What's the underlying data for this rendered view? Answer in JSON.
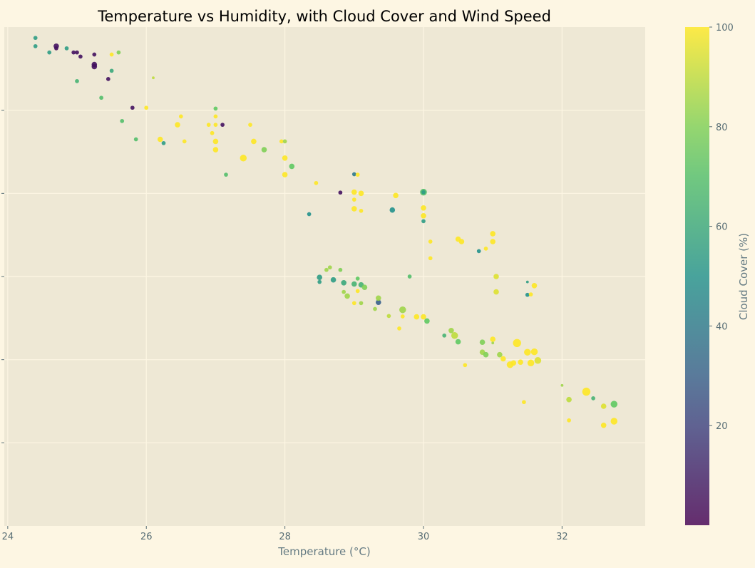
{
  "chart_data": {
    "type": "scatter",
    "title": "Temperature vs Humidity, with Cloud Cover and Wind Speed",
    "xlabel": "Temperature (°C)",
    "ylabel": "",
    "xlim": [
      23.95,
      33.2
    ],
    "ylim": [
      -0.2,
      1.0
    ],
    "x_ticks": [
      24,
      26,
      28,
      30,
      32
    ],
    "x_tick_labels": [
      "24",
      "26",
      "28",
      "30",
      "32"
    ],
    "y_ticks_unlabeled": [
      0.0,
      0.2,
      0.4,
      0.6,
      0.8
    ],
    "grid": true,
    "colorbar": {
      "label": "Cloud Cover (%)",
      "range": [
        0,
        100
      ],
      "ticks": [
        20,
        40,
        60,
        80,
        100
      ],
      "tick_labels": [
        "20",
        "40",
        "60",
        "80",
        "100"
      ],
      "colormap": "viridis"
    },
    "size_encodes": "Wind Speed",
    "points_format": "[temperature, y, cloud_cover, wind_speed]",
    "points": [
      [
        24.4,
        0.974,
        55,
        1.5
      ],
      [
        24.4,
        0.954,
        55,
        1.5
      ],
      [
        24.6,
        0.939,
        55,
        1.5
      ],
      [
        24.7,
        0.954,
        5,
        2
      ],
      [
        24.7,
        0.949,
        5,
        1.5
      ],
      [
        24.85,
        0.949,
        55,
        1.5
      ],
      [
        24.95,
        0.939,
        5,
        1.5
      ],
      [
        25.0,
        0.939,
        5,
        1.5
      ],
      [
        25.05,
        0.929,
        5,
        1.5
      ],
      [
        25.0,
        0.87,
        65,
        1.5
      ],
      [
        25.25,
        0.934,
        5,
        1.5
      ],
      [
        25.25,
        0.91,
        5,
        2
      ],
      [
        25.25,
        0.905,
        5,
        2
      ],
      [
        25.35,
        0.83,
        70,
        1.5
      ],
      [
        25.45,
        0.875,
        5,
        1.5
      ],
      [
        25.5,
        0.895,
        60,
        1.5
      ],
      [
        25.5,
        0.934,
        100,
        1.5
      ],
      [
        25.6,
        0.939,
        80,
        1.5
      ],
      [
        25.65,
        0.774,
        70,
        1.5
      ],
      [
        25.8,
        0.806,
        5,
        1.5
      ],
      [
        25.85,
        0.73,
        70,
        1.5
      ],
      [
        26.0,
        0.806,
        100,
        1.5
      ],
      [
        26.1,
        0.878,
        90,
        1
      ],
      [
        26.2,
        0.73,
        100,
        2
      ],
      [
        26.25,
        0.721,
        55,
        1.5
      ],
      [
        26.45,
        0.765,
        100,
        2
      ],
      [
        26.5,
        0.785,
        100,
        1.5
      ],
      [
        26.55,
        0.725,
        100,
        1.5
      ],
      [
        26.9,
        0.765,
        100,
        1.5
      ],
      [
        26.95,
        0.745,
        100,
        1.5
      ],
      [
        27.0,
        0.804,
        75,
        1.5
      ],
      [
        27.0,
        0.785,
        100,
        1.5
      ],
      [
        27.0,
        0.765,
        100,
        1.5
      ],
      [
        27.0,
        0.725,
        100,
        2
      ],
      [
        27.0,
        0.705,
        100,
        2
      ],
      [
        27.1,
        0.765,
        5,
        1.5
      ],
      [
        27.15,
        0.645,
        70,
        1.5
      ],
      [
        27.4,
        0.685,
        100,
        2.5
      ],
      [
        27.5,
        0.765,
        100,
        1.5
      ],
      [
        27.55,
        0.725,
        100,
        2
      ],
      [
        27.7,
        0.705,
        80,
        2
      ],
      [
        27.95,
        0.725,
        100,
        1.5
      ],
      [
        28.0,
        0.725,
        85,
        1.5
      ],
      [
        28.0,
        0.685,
        100,
        2
      ],
      [
        28.0,
        0.645,
        100,
        2
      ],
      [
        28.1,
        0.665,
        75,
        2
      ],
      [
        28.35,
        0.55,
        50,
        1.5
      ],
      [
        28.45,
        0.625,
        100,
        1.5
      ],
      [
        28.5,
        0.398,
        55,
        2
      ],
      [
        28.5,
        0.387,
        55,
        1.5
      ],
      [
        28.6,
        0.416,
        85,
        1.5
      ],
      [
        28.65,
        0.422,
        85,
        1.5
      ],
      [
        28.7,
        0.392,
        55,
        2
      ],
      [
        28.8,
        0.416,
        80,
        1.5
      ],
      [
        28.8,
        0.602,
        5,
        1.5
      ],
      [
        28.85,
        0.363,
        85,
        1.5
      ],
      [
        28.85,
        0.385,
        60,
        2
      ],
      [
        28.9,
        0.353,
        85,
        2
      ],
      [
        29.0,
        0.646,
        40,
        1.5
      ],
      [
        29.0,
        0.603,
        100,
        2
      ],
      [
        29.0,
        0.585,
        100,
        1.5
      ],
      [
        29.0,
        0.563,
        100,
        2
      ],
      [
        29.0,
        0.336,
        100,
        1.5
      ],
      [
        29.0,
        0.382,
        65,
        2
      ],
      [
        29.05,
        0.395,
        75,
        1.5
      ],
      [
        29.05,
        0.365,
        100,
        1.5
      ],
      [
        29.05,
        0.645,
        100,
        1.5
      ],
      [
        29.1,
        0.6,
        100,
        2
      ],
      [
        29.1,
        0.558,
        100,
        1.5
      ],
      [
        29.1,
        0.38,
        65,
        2
      ],
      [
        29.1,
        0.336,
        85,
        1.5
      ],
      [
        29.15,
        0.374,
        80,
        2
      ],
      [
        29.3,
        0.322,
        85,
        1.5
      ],
      [
        29.35,
        0.338,
        30,
        2
      ],
      [
        29.35,
        0.348,
        85,
        2
      ],
      [
        29.5,
        0.305,
        90,
        1.5
      ],
      [
        29.55,
        0.56,
        50,
        2
      ],
      [
        29.6,
        0.595,
        100,
        2
      ],
      [
        29.65,
        0.275,
        100,
        1.5
      ],
      [
        29.7,
        0.32,
        85,
        2.5
      ],
      [
        29.7,
        0.304,
        100,
        1.5
      ],
      [
        29.8,
        0.4,
        70,
        1.5
      ],
      [
        29.9,
        0.303,
        100,
        2
      ],
      [
        30.0,
        0.603,
        70,
        2.5
      ],
      [
        30.0,
        0.603,
        55,
        1.5
      ],
      [
        30.0,
        0.565,
        100,
        2
      ],
      [
        30.0,
        0.546,
        100,
        2
      ],
      [
        30.0,
        0.533,
        55,
        1.5
      ],
      [
        30.0,
        0.303,
        100,
        2
      ],
      [
        30.05,
        0.293,
        75,
        2
      ],
      [
        30.1,
        0.484,
        100,
        1.5
      ],
      [
        30.1,
        0.444,
        100,
        1.5
      ],
      [
        30.3,
        0.258,
        65,
        1.5
      ],
      [
        30.4,
        0.27,
        85,
        2
      ],
      [
        30.45,
        0.258,
        90,
        2.5
      ],
      [
        30.5,
        0.243,
        75,
        2
      ],
      [
        30.5,
        0.49,
        100,
        2
      ],
      [
        30.55,
        0.484,
        100,
        2
      ],
      [
        30.6,
        0.187,
        100,
        1.5
      ],
      [
        30.8,
        0.461,
        50,
        1.5
      ],
      [
        30.85,
        0.242,
        80,
        2
      ],
      [
        30.85,
        0.218,
        85,
        2
      ],
      [
        30.9,
        0.212,
        80,
        2
      ],
      [
        30.9,
        0.467,
        100,
        1.5
      ],
      [
        31.0,
        0.249,
        100,
        2
      ],
      [
        31.0,
        0.24,
        85,
        1
      ],
      [
        31.0,
        0.503,
        100,
        2
      ],
      [
        31.0,
        0.484,
        100,
        2
      ],
      [
        31.05,
        0.4,
        95,
        2
      ],
      [
        31.05,
        0.363,
        95,
        2
      ],
      [
        31.1,
        0.212,
        85,
        2
      ],
      [
        31.15,
        0.202,
        100,
        2
      ],
      [
        31.25,
        0.188,
        100,
        2.5
      ],
      [
        31.3,
        0.192,
        100,
        2
      ],
      [
        31.35,
        0.24,
        100,
        3
      ],
      [
        31.4,
        0.194,
        100,
        2
      ],
      [
        31.45,
        0.098,
        100,
        1.5
      ],
      [
        31.5,
        0.387,
        55,
        1
      ],
      [
        31.5,
        0.218,
        100,
        2.5
      ],
      [
        31.5,
        0.356,
        50,
        1.5
      ],
      [
        31.55,
        0.192,
        100,
        2.5
      ],
      [
        31.55,
        0.357,
        100,
        1.5
      ],
      [
        31.6,
        0.219,
        100,
        2.5
      ],
      [
        31.6,
        0.378,
        100,
        2
      ],
      [
        31.65,
        0.198,
        95,
        2.5
      ],
      [
        32.0,
        0.138,
        85,
        1
      ],
      [
        32.1,
        0.104,
        90,
        2
      ],
      [
        32.1,
        0.054,
        100,
        1.5
      ],
      [
        32.35,
        0.123,
        100,
        3
      ],
      [
        32.45,
        0.107,
        65,
        1.5
      ],
      [
        32.6,
        0.042,
        100,
        2
      ],
      [
        32.6,
        0.088,
        95,
        2
      ],
      [
        32.75,
        0.093,
        75,
        2.5
      ],
      [
        32.75,
        0.052,
        100,
        2.5
      ]
    ]
  }
}
